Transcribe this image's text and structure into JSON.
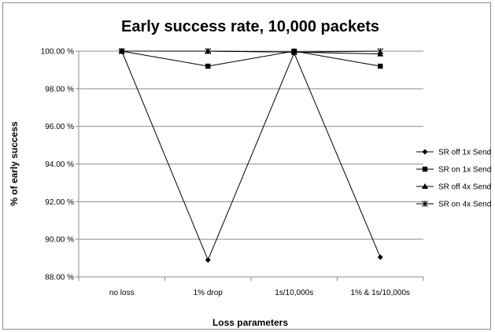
{
  "chart_data": {
    "type": "line",
    "title": "Early success rate, 10,000 packets",
    "xlabel": "Loss parameters",
    "ylabel": "% of early success",
    "categories": [
      "no loss",
      "1% drop",
      "1s/10,000s",
      "1% & 1s/10,000s"
    ],
    "ylim": [
      88,
      100
    ],
    "yticks": [
      88,
      90,
      92,
      94,
      96,
      98,
      100
    ],
    "ytick_labels": [
      "88.00 %",
      "90.00 %",
      "92.00 %",
      "94.00 %",
      "96.00 %",
      "98.00 %",
      "100.00 %"
    ],
    "grid": true,
    "legend_position": "right",
    "series": [
      {
        "name": "SR off 1x Send",
        "marker": "diamond",
        "values": [
          100.0,
          88.9,
          99.9,
          89.05
        ]
      },
      {
        "name": "SR on 1x Send",
        "marker": "square",
        "values": [
          100.0,
          99.2,
          100.0,
          99.2
        ]
      },
      {
        "name": "SR off 4x Send",
        "marker": "triangle",
        "values": [
          100.0,
          100.0,
          99.95,
          99.85
        ]
      },
      {
        "name": "SR on 4x Send",
        "marker": "star",
        "values": [
          100.0,
          100.0,
          99.95,
          100.0
        ]
      }
    ],
    "colors": {
      "line": "#000000",
      "grid": "#8c8c8c",
      "frame": "#8c8c8c"
    }
  }
}
